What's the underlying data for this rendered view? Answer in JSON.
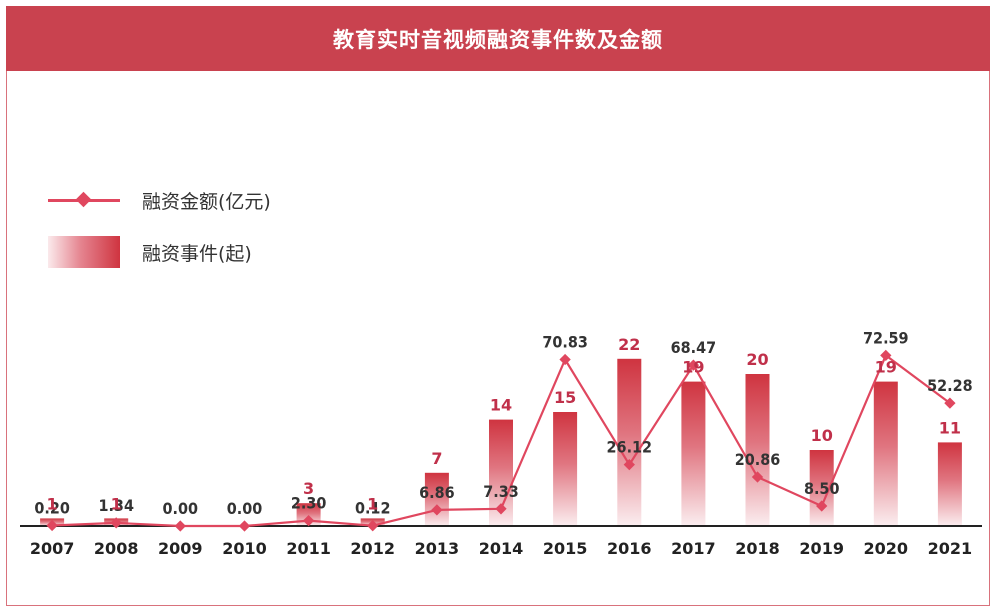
{
  "header": {
    "title": "教育实时音视频融资事件数及金额"
  },
  "legend": {
    "line_label": "融资金额(亿元)",
    "bar_label": "融资事件(起)"
  },
  "colors": {
    "title_bg": "#c9424f",
    "line": "#e0475f",
    "bar_dark": "#cf3440",
    "bar_light": "#fbeaec",
    "count_text": "#c0304a"
  },
  "chart_data": {
    "type": "bar",
    "categories": [
      "2007",
      "2008",
      "2009",
      "2010",
      "2011",
      "2012",
      "2013",
      "2014",
      "2015",
      "2016",
      "2017",
      "2018",
      "2019",
      "2020",
      "2021"
    ],
    "series": [
      {
        "name": "融资事件(起)",
        "type": "bar",
        "values": [
          1,
          1,
          0,
          0,
          3,
          1,
          7,
          14,
          15,
          22,
          19,
          20,
          10,
          19,
          11
        ],
        "labels": [
          "1",
          "1",
          "",
          "",
          "3",
          "1",
          "7",
          "14",
          "15",
          "22",
          "19",
          "20",
          "10",
          "19",
          "11"
        ]
      },
      {
        "name": "融资金额(亿元)",
        "type": "line",
        "values": [
          0.2,
          1.34,
          0.0,
          0.0,
          2.3,
          0.12,
          6.86,
          7.33,
          70.83,
          26.12,
          68.47,
          20.86,
          8.5,
          72.59,
          52.28
        ],
        "labels": [
          "0.20",
          "1.34",
          "0.00",
          "0.00",
          "2.30",
          "0.12",
          "6.86",
          "7.33",
          "70.83",
          "26.12",
          "68.47",
          "20.86",
          "8.50",
          "72.59",
          "52.28"
        ]
      }
    ],
    "title": "教育实时音视频融资事件数及金额",
    "xlabel": "",
    "ylabel": "",
    "grid": false,
    "legend_position": "top-left"
  }
}
